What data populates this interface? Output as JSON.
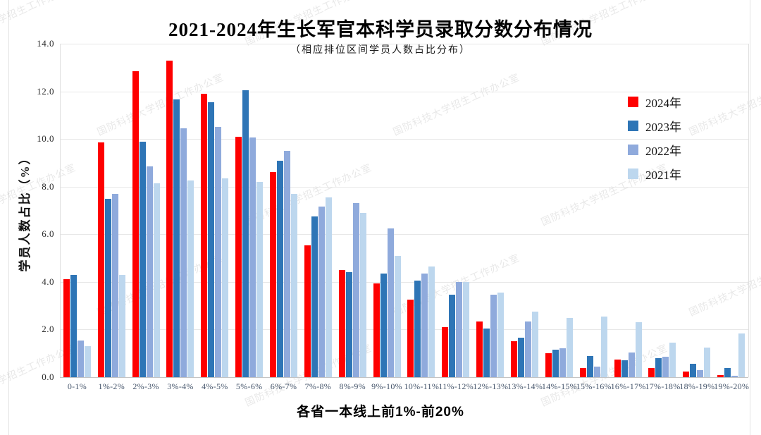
{
  "watermark": {
    "text": "国防科技大学招生工作办公室"
  },
  "chart_data": {
    "type": "bar",
    "title": "2021-2024年生长军官本科学员录取分数分布情况",
    "subtitle": "（相应排位区间学员人数占比分布）",
    "ylabel": "学员人数占比（%）",
    "xlabel": "各省一本线上前1%-前20%",
    "ylim": [
      0,
      14
    ],
    "ytick_step": 2,
    "ytick_labels": [
      "0.0",
      "2.0",
      "4.0",
      "6.0",
      "8.0",
      "10.0",
      "12.0",
      "14.0"
    ],
    "grid": true,
    "legend_position": "right",
    "xtick_color": "#44546a",
    "categories": [
      "0-1%",
      "1%-2%",
      "2%-3%",
      "3%-4%",
      "4%-5%",
      "5%-6%",
      "6%-7%",
      "7%-8%",
      "8%-9%",
      "9%-10%",
      "10%-11%",
      "11%-12%",
      "12%-13%",
      "13%-14%",
      "14%-15%",
      "15%-16%",
      "16%-17%",
      "17%-18%",
      "18%-19%",
      "19%-20%"
    ],
    "series": [
      {
        "name": "2024年",
        "color": "#fe0000",
        "values": [
          4.1,
          9.85,
          12.85,
          13.3,
          11.9,
          10.1,
          8.6,
          5.55,
          4.5,
          3.95,
          3.25,
          2.1,
          2.35,
          1.5,
          1.0,
          0.4,
          0.75,
          0.4,
          0.25,
          0.1
        ]
      },
      {
        "name": "2023年",
        "color": "#2e75b6",
        "values": [
          4.3,
          7.5,
          9.9,
          11.65,
          11.55,
          12.05,
          9.1,
          6.75,
          4.4,
          4.35,
          4.05,
          3.45,
          2.05,
          1.65,
          1.15,
          0.9,
          0.7,
          0.8,
          0.55,
          0.4
        ]
      },
      {
        "name": "2022年",
        "color": "#8faadc",
        "values": [
          1.55,
          7.7,
          8.85,
          10.45,
          10.5,
          10.05,
          9.5,
          7.15,
          7.3,
          6.25,
          4.35,
          4.0,
          3.45,
          2.35,
          1.2,
          0.45,
          1.05,
          0.85,
          0.3,
          0.05
        ]
      },
      {
        "name": "2021年",
        "color": "#bdd7ee",
        "values": [
          1.3,
          4.3,
          8.15,
          8.25,
          8.35,
          8.2,
          7.7,
          7.55,
          6.9,
          5.1,
          4.65,
          4.0,
          3.55,
          2.75,
          2.5,
          2.55,
          2.3,
          1.45,
          1.25,
          1.85
        ]
      }
    ]
  }
}
